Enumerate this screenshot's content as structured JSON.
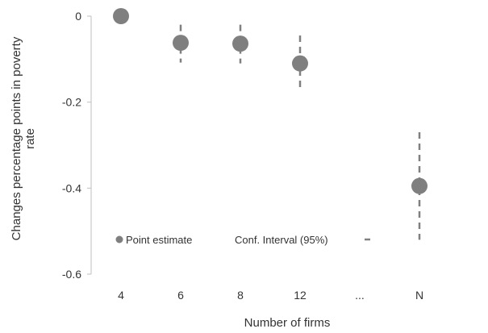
{
  "chart_data": {
    "type": "scatter",
    "title": "",
    "xlabel": "Number of firms",
    "ylabel_line1": "Changes percentage points in poverty",
    "ylabel_line2": "rate",
    "categories": [
      "4",
      "6",
      "8",
      "12",
      "...",
      "N"
    ],
    "ylim": [
      -0.6,
      0
    ],
    "yticks": [
      "0",
      "-0.2",
      "-0.4",
      "-0.6"
    ],
    "ytick_values": [
      0,
      -0.2,
      -0.4,
      -0.6
    ],
    "grid": false,
    "legend_position": "bottom-left",
    "legend": {
      "point_label": "Point estimate",
      "ci_label": "Conf. Interval (95%)"
    },
    "series": [
      {
        "name": "Point estimate",
        "points": [
          {
            "category": "4",
            "y": 0,
            "ci_low": 0,
            "ci_high": 0
          },
          {
            "category": "6",
            "y": -0.062,
            "ci_low": -0.108,
            "ci_high": -0.02
          },
          {
            "category": "8",
            "y": -0.064,
            "ci_low": -0.11,
            "ci_high": -0.02
          },
          {
            "category": "12",
            "y": -0.11,
            "ci_low": -0.175,
            "ci_high": -0.045
          },
          {
            "category": "N",
            "y": -0.395,
            "ci_low": -0.52,
            "ci_high": -0.27
          }
        ]
      }
    ],
    "colors": {
      "marker": "#7f7f7f",
      "ci": "#808080",
      "axis": "#bfbfbf",
      "text": "#333333"
    }
  }
}
